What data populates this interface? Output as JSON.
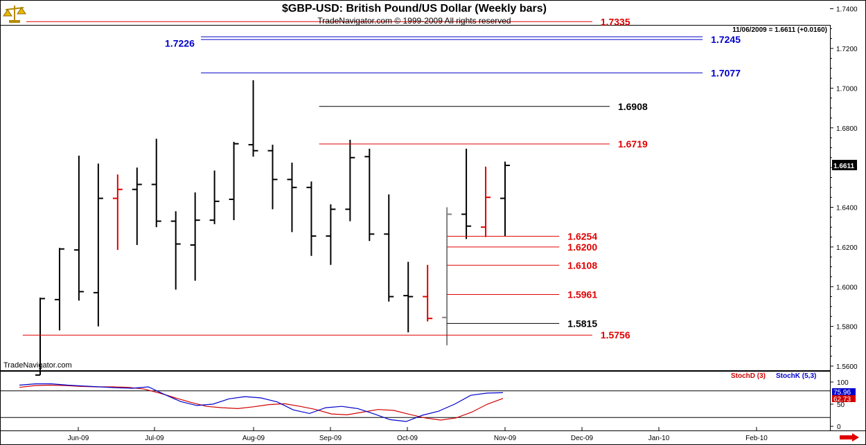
{
  "header": {
    "title": "$GBP-USD:  British Pound/US Dollar  (Weekly bars)",
    "subtitle": "TradeNavigator.com © 1999-2009 All rights reserved",
    "info": "11/06/2009 = 1.6611 (+0.0160)",
    "brand": "TradeNavigator.com"
  },
  "colors": {
    "up": "#000000",
    "down": "#e00000",
    "neutral": "#808080",
    "level_red": "#e00000",
    "level_blue": "#0000cc",
    "level_black": "#000000",
    "stoch_d": "#d00000",
    "stoch_k": "#0000cc"
  },
  "chart_data": [
    {
      "type": "bar",
      "subtype": "ohlc",
      "ylim": [
        1.55,
        1.745
      ],
      "y_ticks": [
        "1.7400",
        "1.7200",
        "1.7000",
        "1.6800",
        "1.6600",
        "1.6400",
        "1.6200",
        "1.6000",
        "1.5800",
        "1.5600"
      ],
      "x_ticks": [
        "Jun-09",
        "Jul-09",
        "Aug-09",
        "Sep-09",
        "Oct-09",
        "Nov-09",
        "Dec-09",
        "Jan-10",
        "Feb-10"
      ],
      "last_price_label": "1.6611",
      "bars": [
        {
          "o": 1.5555,
          "h": 1.5945,
          "l": 1.5555,
          "c": 1.594,
          "color": "up"
        },
        {
          "o": 1.5935,
          "h": 1.6195,
          "l": 1.578,
          "c": 1.619,
          "color": "up"
        },
        {
          "o": 1.6185,
          "h": 1.666,
          "l": 1.593,
          "c": 1.5975,
          "color": "up"
        },
        {
          "o": 1.597,
          "h": 1.662,
          "l": 1.58,
          "c": 1.6445,
          "color": "up"
        },
        {
          "o": 1.6445,
          "h": 1.6565,
          "l": 1.6185,
          "c": 1.649,
          "color": "down"
        },
        {
          "o": 1.649,
          "h": 1.66,
          "l": 1.621,
          "c": 1.6515,
          "color": "up"
        },
        {
          "o": 1.6515,
          "h": 1.6745,
          "l": 1.63,
          "c": 1.633,
          "color": "up"
        },
        {
          "o": 1.633,
          "h": 1.638,
          "l": 1.5985,
          "c": 1.6215,
          "color": "up"
        },
        {
          "o": 1.621,
          "h": 1.6475,
          "l": 1.603,
          "c": 1.6335,
          "color": "up"
        },
        {
          "o": 1.6335,
          "h": 1.6585,
          "l": 1.6315,
          "c": 1.643,
          "color": "up"
        },
        {
          "o": 1.644,
          "h": 1.673,
          "l": 1.6335,
          "c": 1.672,
          "color": "up"
        },
        {
          "o": 1.6715,
          "h": 1.704,
          "l": 1.6655,
          "c": 1.6685,
          "color": "up"
        },
        {
          "o": 1.6685,
          "h": 1.6715,
          "l": 1.639,
          "c": 1.654,
          "color": "up"
        },
        {
          "o": 1.654,
          "h": 1.6625,
          "l": 1.6275,
          "c": 1.65,
          "color": "up"
        },
        {
          "o": 1.65,
          "h": 1.653,
          "l": 1.6155,
          "c": 1.6255,
          "color": "up"
        },
        {
          "o": 1.6255,
          "h": 1.6415,
          "l": 1.611,
          "c": 1.639,
          "color": "up"
        },
        {
          "o": 1.639,
          "h": 1.674,
          "l": 1.633,
          "c": 1.665,
          "color": "up"
        },
        {
          "o": 1.6655,
          "h": 1.6695,
          "l": 1.623,
          "c": 1.6265,
          "color": "up"
        },
        {
          "o": 1.6265,
          "h": 1.6465,
          "l": 1.5925,
          "c": 1.595,
          "color": "up"
        },
        {
          "o": 1.5955,
          "h": 1.6125,
          "l": 1.577,
          "c": 1.595,
          "color": "up"
        },
        {
          "o": 1.595,
          "h": 1.611,
          "l": 1.5825,
          "c": 1.584,
          "color": "down"
        },
        {
          "o": 1.5845,
          "h": 1.64,
          "l": 1.5705,
          "c": 1.6365,
          "color": "neutral"
        },
        {
          "o": 1.6365,
          "h": 1.6695,
          "l": 1.624,
          "c": 1.6305,
          "color": "up"
        },
        {
          "o": 1.63,
          "h": 1.6605,
          "l": 1.625,
          "c": 1.645,
          "color": "down"
        },
        {
          "o": 1.6445,
          "h": 1.663,
          "l": 1.6255,
          "c": 1.6611,
          "color": "up"
        }
      ],
      "levels": [
        {
          "value": 1.7335,
          "label": "1.7335",
          "color": "level_red",
          "from_bar": -1.8,
          "to_bar": 28.5,
          "double": false,
          "label_side": "right"
        },
        {
          "value": 1.7245,
          "label": "1.7245",
          "color": "level_blue",
          "from_bar": 8.3,
          "to_bar": 34.2,
          "double": true,
          "label_side": "right"
        },
        {
          "value": 1.7226,
          "label": "1.7226",
          "color": "level_blue",
          "from_bar": 8.3,
          "to_bar": 8.3,
          "double": false,
          "label_side": "left-only"
        },
        {
          "value": 1.7077,
          "label": "1.7077",
          "color": "level_blue",
          "from_bar": 8.3,
          "to_bar": 34.2,
          "double": false,
          "label_side": "right"
        },
        {
          "value": 1.6908,
          "label": "1.6908",
          "color": "level_black",
          "from_bar": 14.4,
          "to_bar": 29.4,
          "double": false,
          "label_side": "right"
        },
        {
          "value": 1.6719,
          "label": "1.6719",
          "color": "level_red",
          "from_bar": 14.4,
          "to_bar": 29.4,
          "double": false,
          "label_side": "right"
        },
        {
          "value": 1.6254,
          "label": "1.6254",
          "color": "level_red",
          "from_bar": 21.0,
          "to_bar": 26.8,
          "double": false,
          "label_side": "right"
        },
        {
          "value": 1.62,
          "label": "1.6200",
          "color": "level_red",
          "from_bar": 21.0,
          "to_bar": 26.8,
          "double": false,
          "label_side": "right"
        },
        {
          "value": 1.6108,
          "label": "1.6108",
          "color": "level_red",
          "from_bar": 21.0,
          "to_bar": 26.8,
          "double": false,
          "label_side": "right"
        },
        {
          "value": 1.5961,
          "label": "1.5961",
          "color": "level_red",
          "from_bar": 21.0,
          "to_bar": 26.8,
          "double": false,
          "label_side": "right"
        },
        {
          "value": 1.5815,
          "label": "1.5815",
          "color": "level_black",
          "from_bar": 21.0,
          "to_bar": 26.8,
          "double": false,
          "label_side": "right"
        },
        {
          "value": 1.5756,
          "label": "1.5756",
          "color": "level_red",
          "from_bar": -0.9,
          "to_bar": 28.5,
          "double": false,
          "label_side": "right"
        }
      ]
    },
    {
      "type": "line",
      "subtype": "stochastic",
      "ylim": [
        -5,
        120
      ],
      "y_ticks": [
        "100",
        "50",
        "0"
      ],
      "reference_lines": [
        80,
        20
      ],
      "series": [
        {
          "name": "StochD (3)",
          "color": "stoch_d",
          "last_label": "62.73",
          "values": [
            88,
            92,
            93,
            92,
            90,
            89,
            89,
            88,
            84,
            75,
            64,
            54,
            45,
            42,
            40,
            44,
            49,
            51,
            45,
            38,
            28,
            26,
            32,
            38,
            36,
            27,
            19,
            14,
            19,
            32,
            50,
            63
          ]
        },
        {
          "name": "StochK (5,3)",
          "color": "stoch_k",
          "last_label": "75.96",
          "values": [
            93,
            96,
            96,
            93,
            91,
            89,
            87,
            86,
            89,
            72,
            56,
            47,
            50,
            62,
            67,
            64,
            55,
            37,
            29,
            42,
            45,
            40,
            28,
            15,
            11,
            25,
            34,
            50,
            70,
            75,
            76
          ]
        }
      ]
    }
  ]
}
